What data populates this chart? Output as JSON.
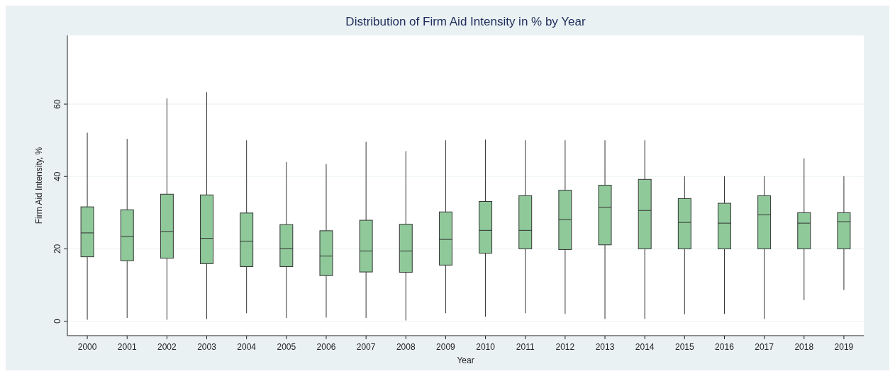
{
  "chart_data": {
    "type": "box",
    "title": "Distribution of Firm Aid Intensity in % by Year",
    "xlabel": "Year",
    "ylabel": "Firm Aid Intensity, %",
    "color": "#8fc99a",
    "grid": "y",
    "ylim": [
      -4,
      79
    ],
    "yticks": [
      0,
      20,
      40,
      60
    ],
    "categories": [
      "2000",
      "2001",
      "2002",
      "2003",
      "2004",
      "2005",
      "2006",
      "2007",
      "2008",
      "2009",
      "2010",
      "2011",
      "2012",
      "2013",
      "2014",
      "2015",
      "2016",
      "2017",
      "2018",
      "2019"
    ],
    "boxes": [
      {
        "low": 0.4,
        "q1": 17.8,
        "median": 24.4,
        "q3": 31.6,
        "high": 52.1
      },
      {
        "low": 0.9,
        "q1": 16.7,
        "median": 23.4,
        "q3": 30.8,
        "high": 50.4
      },
      {
        "low": 0.4,
        "q1": 17.4,
        "median": 24.8,
        "q3": 35.1,
        "high": 61.6
      },
      {
        "low": 0.6,
        "q1": 15.9,
        "median": 22.9,
        "q3": 34.9,
        "high": 63.3
      },
      {
        "low": 2.2,
        "q1": 15.1,
        "median": 22.1,
        "q3": 29.9,
        "high": 50
      },
      {
        "low": 0.9,
        "q1": 15.1,
        "median": 20.1,
        "q3": 26.7,
        "high": 44
      },
      {
        "low": 1,
        "q1": 12.6,
        "median": 18,
        "q3": 25,
        "high": 43.4
      },
      {
        "low": 0.9,
        "q1": 13.6,
        "median": 19.4,
        "q3": 27.9,
        "high": 49.6
      },
      {
        "low": 0.2,
        "q1": 13.5,
        "median": 19.4,
        "q3": 26.8,
        "high": 47
      },
      {
        "low": 2.2,
        "q1": 15.5,
        "median": 22.6,
        "q3": 30.2,
        "high": 50
      },
      {
        "low": 1.2,
        "q1": 18.8,
        "median": 25.1,
        "q3": 33.1,
        "high": 50.2
      },
      {
        "low": 2.2,
        "q1": 20,
        "median": 25.1,
        "q3": 34.7,
        "high": 50
      },
      {
        "low": 2,
        "q1": 19.8,
        "median": 28.1,
        "q3": 36.2,
        "high": 50
      },
      {
        "low": 0.6,
        "q1": 21.1,
        "median": 31.5,
        "q3": 37.6,
        "high": 50
      },
      {
        "low": 0.6,
        "q1": 20,
        "median": 30.6,
        "q3": 39.2,
        "high": 50
      },
      {
        "low": 1.9,
        "q1": 20,
        "median": 27.3,
        "q3": 33.9,
        "high": 40.1
      },
      {
        "low": 2,
        "q1": 20,
        "median": 27.1,
        "q3": 32.6,
        "high": 40.1
      },
      {
        "low": 0.6,
        "q1": 20,
        "median": 29.4,
        "q3": 34.7,
        "high": 40.1
      },
      {
        "low": 5.8,
        "q1": 20,
        "median": 27.1,
        "q3": 30,
        "high": 45
      },
      {
        "low": 8.6,
        "q1": 20,
        "median": 27.5,
        "q3": 30,
        "high": 40.1
      }
    ]
  }
}
